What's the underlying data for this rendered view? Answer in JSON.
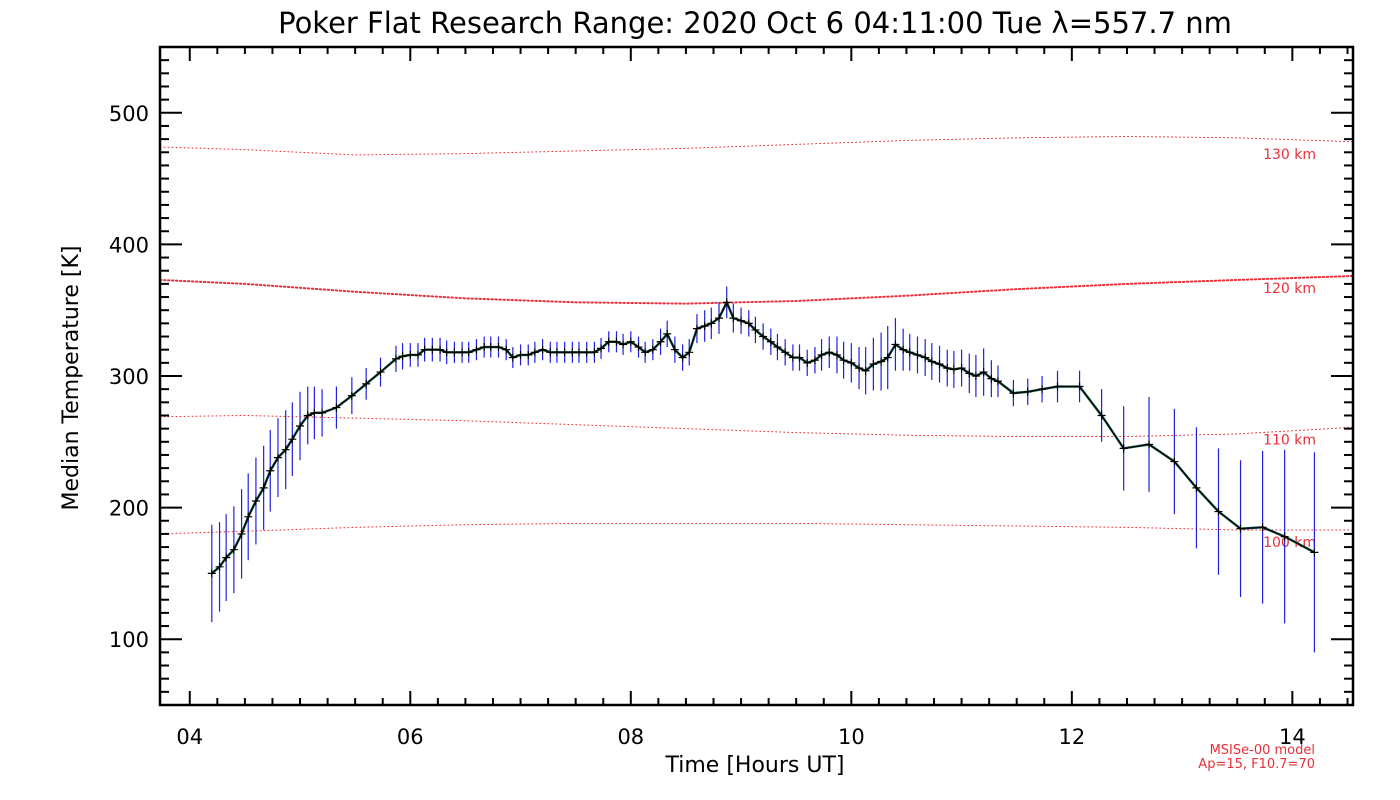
{
  "chart_data": {
    "type": "line",
    "title": "Poker Flat Research Range: 2020 Oct  6 04:11:00 Tue λ=557.7 nm",
    "xlabel": "Time [Hours UT]",
    "ylabel": "Median Temperature [K]",
    "xlim": [
      3.73,
      14.55
    ],
    "ylim": [
      50,
      550
    ],
    "x_ticks": [
      4,
      6,
      8,
      10,
      12,
      14
    ],
    "x_tick_labels": [
      "04",
      "06",
      "08",
      "10",
      "12",
      "14"
    ],
    "y_ticks": [
      100,
      200,
      300,
      400,
      500
    ],
    "y_tick_labels": [
      "100",
      "200",
      "300",
      "400",
      "500"
    ],
    "grid": false,
    "colors": {
      "data_line": "#000000",
      "error_bar": "#2020e0",
      "model": "#e8303a"
    },
    "series": [
      {
        "marker": "+",
        "x": [
          4.2,
          4.27,
          4.33,
          4.4,
          4.47,
          4.53,
          4.6,
          4.67,
          4.73,
          4.8,
          4.87,
          4.93,
          5.0,
          5.07,
          5.13,
          5.2,
          5.33,
          5.47,
          5.6,
          5.73,
          5.87,
          5.93,
          6.0,
          6.07,
          6.13,
          6.2,
          6.27,
          6.33,
          6.4,
          6.47,
          6.53,
          6.6,
          6.67,
          6.73,
          6.8,
          6.87,
          6.93,
          7.0,
          7.07,
          7.13,
          7.2,
          7.27,
          7.33,
          7.4,
          7.47,
          7.53,
          7.6,
          7.67,
          7.73,
          7.8,
          7.87,
          7.93,
          8.0,
          8.07,
          8.13,
          8.2,
          8.27,
          8.33,
          8.4,
          8.47,
          8.53,
          8.6,
          8.67,
          8.73,
          8.8,
          8.87,
          8.93,
          9.0,
          9.07,
          9.13,
          9.2,
          9.27,
          9.33,
          9.4,
          9.47,
          9.53,
          9.6,
          9.67,
          9.73,
          9.8,
          9.87,
          9.93,
          10.0,
          10.07,
          10.13,
          10.2,
          10.27,
          10.33,
          10.4,
          10.47,
          10.53,
          10.6,
          10.67,
          10.73,
          10.8,
          10.87,
          10.93,
          11.0,
          11.07,
          11.13,
          11.2,
          11.27,
          11.33,
          11.47,
          11.6,
          11.73,
          11.87,
          12.07,
          12.27,
          12.47,
          12.7,
          12.93,
          13.13,
          13.33,
          13.53,
          13.73,
          13.93,
          14.2
        ],
        "y": [
          150,
          155,
          162,
          168,
          180,
          193,
          205,
          215,
          228,
          238,
          244,
          252,
          262,
          270,
          272,
          272,
          276,
          285,
          294,
          303,
          313,
          315,
          316,
          316,
          320,
          320,
          320,
          318,
          318,
          318,
          318,
          320,
          322,
          322,
          322,
          320,
          314,
          316,
          316,
          318,
          320,
          318,
          318,
          318,
          318,
          318,
          318,
          318,
          321,
          326,
          326,
          324,
          326,
          322,
          318,
          320,
          326,
          332,
          320,
          314,
          318,
          336,
          338,
          340,
          344,
          356,
          344,
          342,
          340,
          335,
          330,
          326,
          322,
          318,
          314,
          314,
          310,
          312,
          316,
          318,
          316,
          312,
          310,
          306,
          304,
          309,
          311,
          314,
          324,
          320,
          318,
          316,
          314,
          311,
          309,
          306,
          305,
          306,
          302,
          300,
          303,
          298,
          296,
          287,
          288,
          290,
          292,
          292,
          270,
          245,
          248,
          235,
          215,
          197,
          184,
          185,
          178,
          166
        ],
        "y_err": [
          37,
          34,
          33,
          33,
          34,
          33,
          33,
          32,
          31,
          30,
          30,
          28,
          26,
          22,
          20,
          18,
          16,
          14,
          12,
          11,
          10,
          10,
          9,
          9,
          9,
          9,
          9,
          9,
          8,
          8,
          8,
          8,
          8,
          8,
          8,
          8,
          8,
          8,
          8,
          8,
          8,
          8,
          8,
          8,
          8,
          8,
          8,
          8,
          8,
          8,
          8,
          8,
          8,
          8,
          8,
          8,
          10,
          10,
          10,
          10,
          10,
          11,
          12,
          12,
          12,
          12,
          11,
          10,
          10,
          10,
          10,
          10,
          10,
          10,
          10,
          10,
          10,
          10,
          12,
          12,
          14,
          14,
          15,
          16,
          18,
          20,
          22,
          24,
          20,
          16,
          14,
          14,
          14,
          14,
          14,
          14,
          14,
          14,
          15,
          16,
          18,
          14,
          12,
          10,
          10,
          10,
          12,
          12,
          20,
          32,
          36,
          40,
          46,
          48,
          52,
          58,
          66,
          76
        ]
      }
    ],
    "model_curves": [
      {
        "label": "130 km",
        "x": [
          3.73,
          4.5,
          5.5,
          6.5,
          7.5,
          8.5,
          9.5,
          10.5,
          11.5,
          12.5,
          13.5,
          14.55
        ],
        "y": [
          474,
          472,
          468,
          469,
          471,
          473,
          476,
          479,
          481,
          482,
          481,
          478
        ]
      },
      {
        "label": "120 km",
        "x": [
          3.73,
          4.5,
          5.5,
          6.5,
          7.5,
          8.5,
          9.5,
          10.5,
          11.5,
          12.5,
          13.5,
          14.55
        ],
        "y": [
          373,
          370,
          364,
          359,
          356,
          355,
          357,
          361,
          366,
          370,
          373,
          376
        ]
      },
      {
        "label": "110 km",
        "x": [
          3.73,
          4.5,
          5.5,
          6.5,
          7.5,
          8.5,
          9.5,
          10.5,
          11.5,
          12.5,
          13.5,
          14.55
        ],
        "y": [
          269,
          270,
          268,
          266,
          263,
          260,
          257,
          255,
          254,
          254,
          256,
          261
        ]
      },
      {
        "label": "100 km",
        "x": [
          3.73,
          4.5,
          5.5,
          6.5,
          7.5,
          8.5,
          9.5,
          10.5,
          11.5,
          12.5,
          13.5,
          14.55
        ],
        "y": [
          180,
          182,
          185,
          187,
          188,
          188,
          188,
          187,
          186,
          185,
          183,
          183
        ]
      }
    ],
    "model_note": [
      "MSISe-00 model",
      "Ap=15, F10.7=70"
    ]
  }
}
